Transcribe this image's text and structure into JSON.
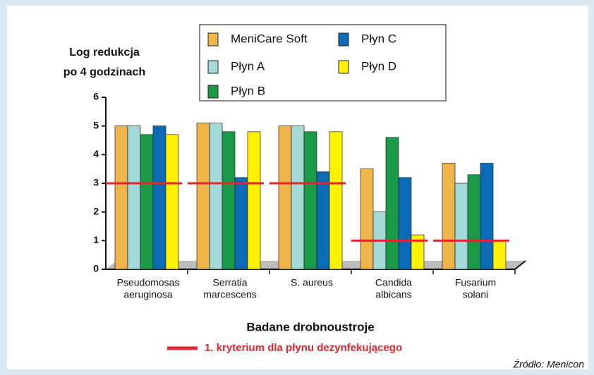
{
  "chart_data": {
    "type": "bar",
    "ylabel": [
      "Log redukcja",
      "po 4 godzinach"
    ],
    "xlabel": "Badane drobnoustroje",
    "categories": [
      [
        "Pseudomosas",
        "aeruginosa"
      ],
      [
        "Serratia",
        "marcescens"
      ],
      [
        "S. aureus"
      ],
      [
        "Candida",
        "albicans"
      ],
      [
        "Fusarium",
        "solani"
      ]
    ],
    "series": [
      {
        "name": "MeniCare Soft",
        "color": "#efb54a",
        "values": [
          5.0,
          5.1,
          5.0,
          3.5,
          3.7
        ]
      },
      {
        "name": "Płyn A",
        "color": "#a3d9d6",
        "values": [
          5.0,
          5.1,
          5.0,
          2.0,
          3.0
        ]
      },
      {
        "name": "Płyn B",
        "color": "#1b9a4a",
        "values": [
          4.7,
          4.8,
          4.8,
          4.6,
          3.3
        ]
      },
      {
        "name": "Płyn C",
        "color": "#0a6bb5",
        "values": [
          5.0,
          3.2,
          3.4,
          3.2,
          3.7
        ]
      },
      {
        "name": "Płyn D",
        "color": "#fef200",
        "values": [
          4.7,
          4.8,
          4.8,
          1.2,
          1.0
        ]
      }
    ],
    "criterion": {
      "label": "1. kryterium dla płynu dezynfekującego",
      "color": "#e3262c",
      "values": [
        3,
        3,
        3,
        1,
        1
      ]
    },
    "ylim": [
      0,
      6
    ],
    "yticks": [
      0,
      1,
      2,
      3,
      4,
      5,
      6
    ],
    "source": "Źródło: Menicon"
  }
}
